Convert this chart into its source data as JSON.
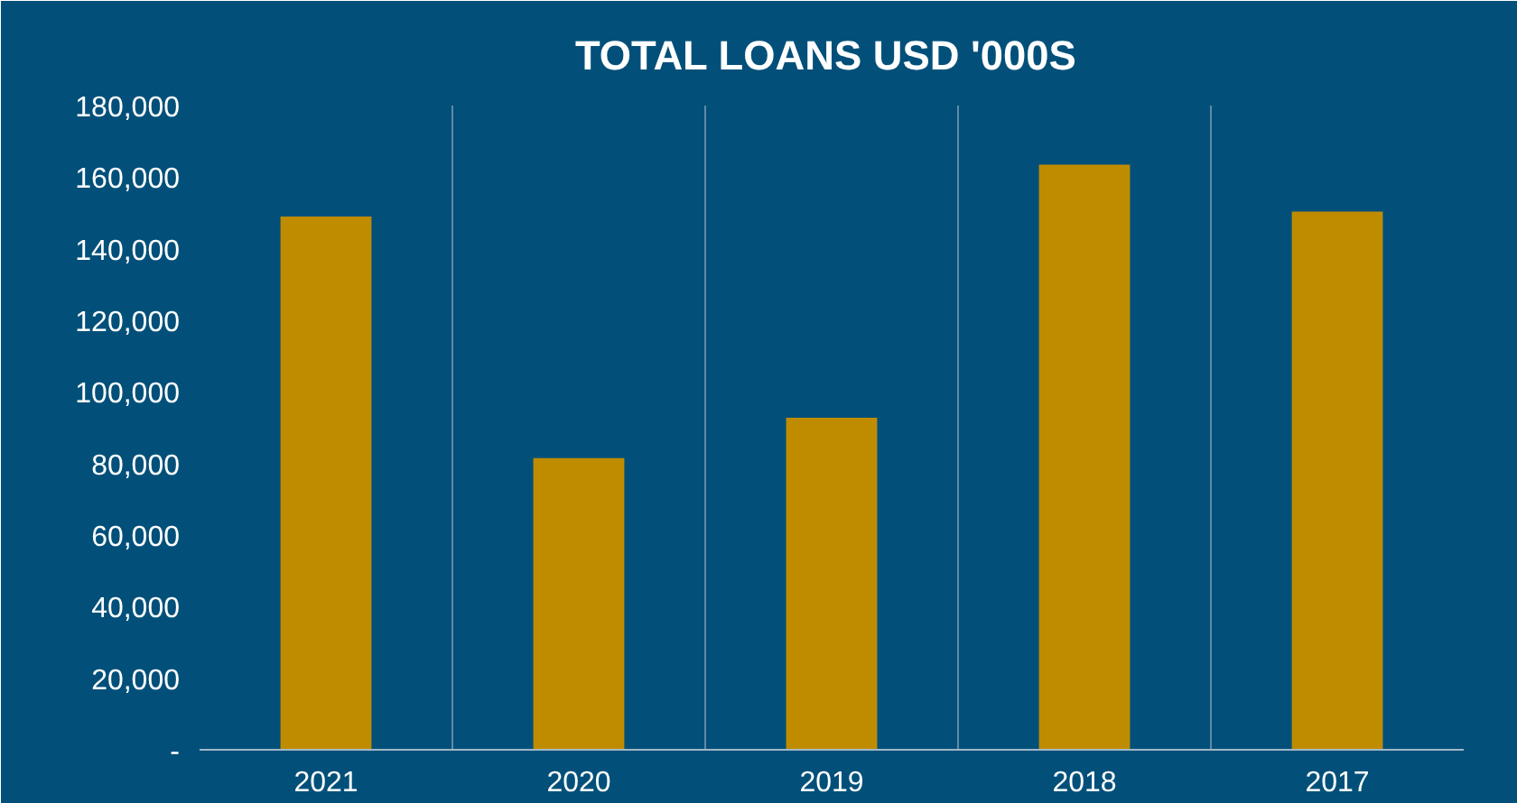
{
  "chart_data": {
    "type": "bar",
    "title": "TOTAL LOANS  USD '000S",
    "categories": [
      "2021",
      "2020",
      "2019",
      "2018",
      "2017"
    ],
    "values": [
      149000,
      81500,
      92800,
      163500,
      150400
    ],
    "color": "#bf8c00",
    "ylim": [
      0,
      180000
    ],
    "yticks": [
      {
        "value": 0,
        "label": "-"
      },
      {
        "value": 20000,
        "label": "20,000"
      },
      {
        "value": 40000,
        "label": "40,000"
      },
      {
        "value": 60000,
        "label": "60,000"
      },
      {
        "value": 80000,
        "label": "80,000"
      },
      {
        "value": 100000,
        "label": "100,000"
      },
      {
        "value": 120000,
        "label": "120,000"
      },
      {
        "value": 140000,
        "label": "140,000"
      },
      {
        "value": 160000,
        "label": "160,000"
      },
      {
        "value": 180000,
        "label": "180,000"
      }
    ],
    "grid": "x"
  }
}
